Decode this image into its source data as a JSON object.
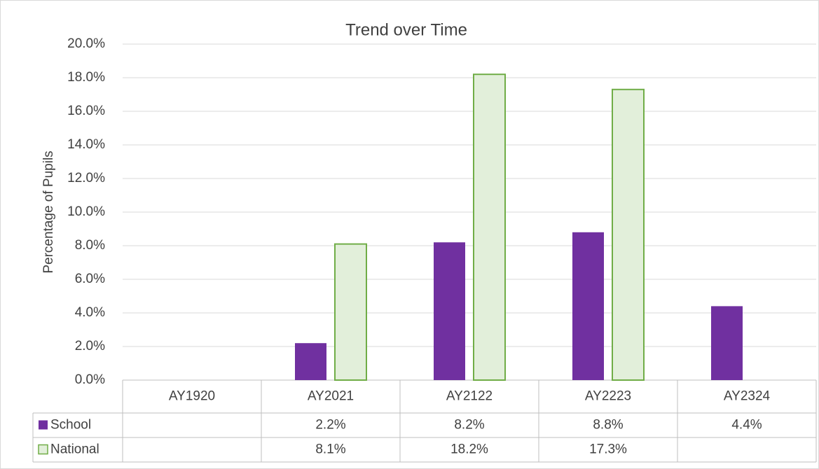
{
  "chart_data": {
    "type": "bar",
    "title": "Trend over Time",
    "y_label": "Percentage of Pupils",
    "categories": [
      "AY1920",
      "AY2021",
      "AY2122",
      "AY2223",
      "AY2324"
    ],
    "series": [
      {
        "name": "School",
        "color": "#7030a0",
        "values": [
          null,
          2.2,
          8.2,
          8.8,
          4.4
        ],
        "value_labels": [
          null,
          "2.2%",
          "8.2%",
          "8.8%",
          "4.4%"
        ]
      },
      {
        "name": "National",
        "color": "#e2efda",
        "edge_color": "#70ad47",
        "values": [
          null,
          8.1,
          18.2,
          17.3,
          null
        ],
        "value_labels": [
          null,
          "8.1%",
          "18.2%",
          "17.3%",
          null
        ]
      }
    ],
    "ylim": [
      0,
      20
    ],
    "yticks": [
      {
        "value": 0,
        "label": "0.0%"
      },
      {
        "value": 2,
        "label": "2.0%"
      },
      {
        "value": 4,
        "label": "4.0%"
      },
      {
        "value": 6,
        "label": "6.0%"
      },
      {
        "value": 8,
        "label": "8.0%"
      },
      {
        "value": 10,
        "label": "10.0%"
      },
      {
        "value": 12,
        "label": "12.0%"
      },
      {
        "value": 14,
        "label": "14.0%"
      },
      {
        "value": 16,
        "label": "16.0%"
      },
      {
        "value": 18,
        "label": "18.0%"
      },
      {
        "value": 20,
        "label": "20.0%"
      }
    ],
    "grid": true
  }
}
